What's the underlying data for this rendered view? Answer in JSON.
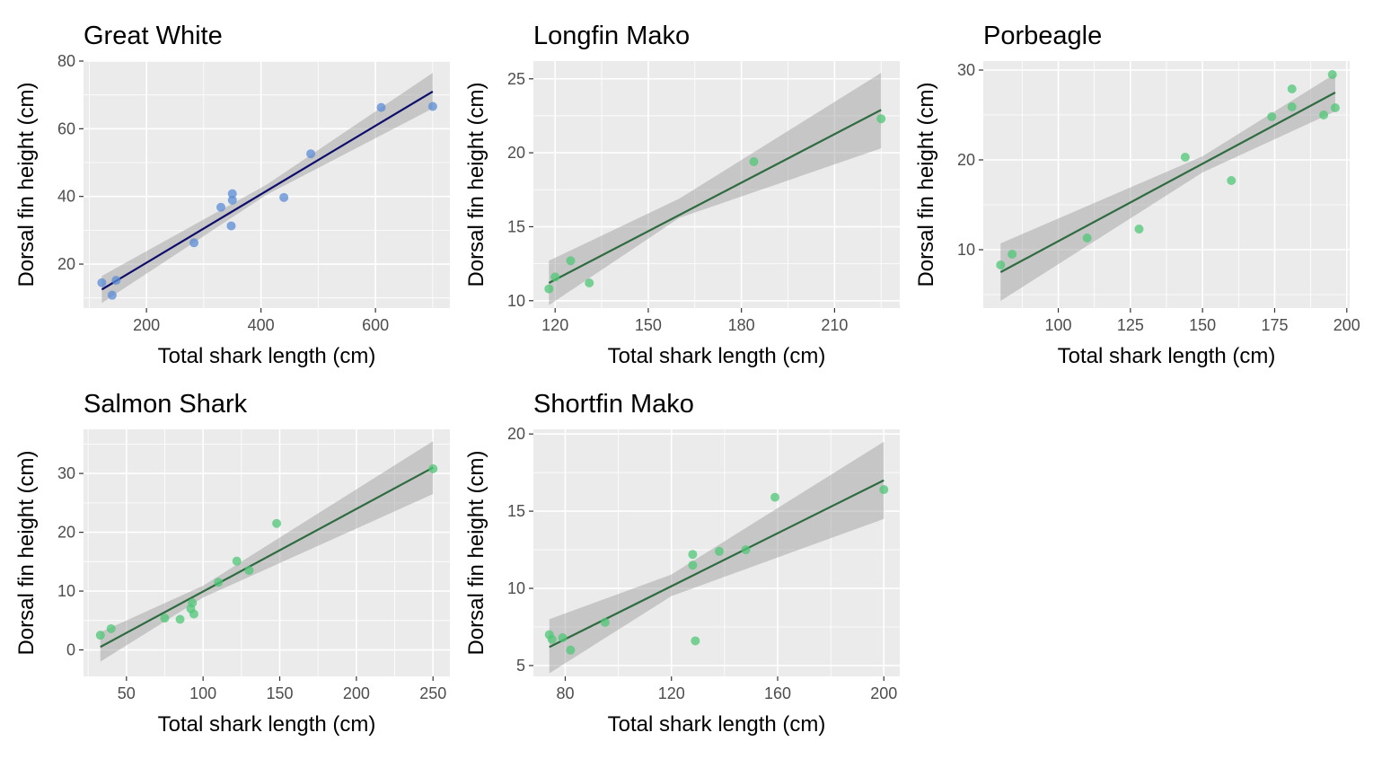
{
  "chart_data": [
    {
      "type": "scatter",
      "title": "Great White",
      "xlabel": "Total shark length (cm)",
      "ylabel": "Dorsal fin height (cm)",
      "xlim": [
        90,
        730
      ],
      "ylim": [
        7,
        80
      ],
      "xticks": [
        200,
        400,
        600
      ],
      "yticks": [
        20,
        40,
        60,
        80
      ],
      "xticklabels": [
        "200",
        "400",
        "600"
      ],
      "yticklabels": [
        "20",
        "40",
        "60",
        "80"
      ],
      "grid": true,
      "point_color": "#5b8bd6",
      "line_color": "#0d0d6b",
      "points": [
        [
          122,
          14.5
        ],
        [
          140,
          10.8
        ],
        [
          147,
          15.2
        ],
        [
          283,
          26.3
        ],
        [
          330,
          36.8
        ],
        [
          348,
          31.3
        ],
        [
          350,
          38.9
        ],
        [
          350,
          40.8
        ],
        [
          440,
          39.7
        ],
        [
          487,
          52.6
        ],
        [
          610,
          66.3
        ],
        [
          700,
          66.6
        ]
      ],
      "fit": {
        "x0": 122,
        "y0": 12.5,
        "x1": 700,
        "y1": 71.0
      },
      "ci": {
        "lower": [
          [
            122,
            8.5
          ],
          [
            410,
            40.5
          ],
          [
            700,
            66.0
          ]
        ],
        "upper": [
          [
            122,
            16.5
          ],
          [
            410,
            43.5
          ],
          [
            700,
            76.5
          ]
        ]
      }
    },
    {
      "type": "scatter",
      "title": "Longfin Mako",
      "xlabel": "Total shark length (cm)",
      "ylabel": "Dorsal fin height (cm)",
      "xlim": [
        113,
        231
      ],
      "ylim": [
        9.5,
        26.2
      ],
      "xticks": [
        120,
        150,
        180,
        210
      ],
      "yticks": [
        10,
        15,
        20,
        25
      ],
      "xticklabels": [
        "120",
        "150",
        "180",
        "210"
      ],
      "yticklabels": [
        "10",
        "15",
        "20",
        "25"
      ],
      "grid": true,
      "point_color": "#4fc776",
      "line_color": "#2f6b40",
      "points": [
        [
          118,
          10.8
        ],
        [
          120,
          11.6
        ],
        [
          125,
          12.7
        ],
        [
          131,
          11.2
        ],
        [
          184,
          19.4
        ],
        [
          225,
          22.3
        ]
      ],
      "fit": {
        "x0": 118,
        "y0": 11.2,
        "x1": 225,
        "y1": 22.9
      },
      "ci": {
        "lower": [
          [
            118,
            9.7
          ],
          [
            160,
            15.6
          ],
          [
            225,
            20.3
          ]
        ],
        "upper": [
          [
            118,
            12.7
          ],
          [
            160,
            16.9
          ],
          [
            225,
            25.4
          ]
        ]
      }
    },
    {
      "type": "scatter",
      "title": "Porbeagle",
      "xlabel": "Total shark length (cm)",
      "ylabel": "Dorsal fin height (cm)",
      "xlim": [
        74,
        201
      ],
      "ylim": [
        3.5,
        31
      ],
      "xticks": [
        100,
        125,
        150,
        175,
        200
      ],
      "yticks": [
        10,
        20,
        30
      ],
      "xticklabels": [
        "100",
        "125",
        "150",
        "175",
        "200"
      ],
      "yticklabels": [
        "10",
        "20",
        "30"
      ],
      "grid": true,
      "point_color": "#4fc776",
      "line_color": "#2f6b40",
      "points": [
        [
          80,
          8.3
        ],
        [
          84,
          9.5
        ],
        [
          110,
          11.3
        ],
        [
          128,
          12.3
        ],
        [
          144,
          20.3
        ],
        [
          160,
          17.7
        ],
        [
          174,
          24.8
        ],
        [
          181,
          27.9
        ],
        [
          181,
          25.9
        ],
        [
          192,
          25.0
        ],
        [
          195,
          29.5
        ],
        [
          196,
          25.8
        ]
      ],
      "fit": {
        "x0": 80,
        "y0": 7.5,
        "x1": 196,
        "y1": 27.5
      },
      "ci": {
        "lower": [
          [
            80,
            4.3
          ],
          [
            150,
            18.6
          ],
          [
            196,
            25.4
          ]
        ],
        "upper": [
          [
            80,
            10.7
          ],
          [
            150,
            20.4
          ],
          [
            196,
            29.6
          ]
        ]
      }
    },
    {
      "type": "scatter",
      "title": "Salmon Shark",
      "xlabel": "Total shark length (cm)",
      "ylabel": "Dorsal fin height (cm)",
      "xlim": [
        22,
        261
      ],
      "ylim": [
        -4.5,
        37.5
      ],
      "xticks": [
        50,
        100,
        150,
        200,
        250
      ],
      "yticks": [
        0,
        10,
        20,
        30
      ],
      "xticklabels": [
        "50",
        "100",
        "150",
        "200",
        "250"
      ],
      "yticklabels": [
        "0",
        "10",
        "20",
        "30"
      ],
      "grid": true,
      "point_color": "#4fc776",
      "line_color": "#2f6b40",
      "points": [
        [
          33,
          2.5
        ],
        [
          40,
          3.6
        ],
        [
          75,
          5.4
        ],
        [
          85,
          5.2
        ],
        [
          92,
          7.0
        ],
        [
          93,
          8.0
        ],
        [
          94,
          6.1
        ],
        [
          110,
          11.5
        ],
        [
          122,
          15.1
        ],
        [
          130,
          13.5
        ],
        [
          148,
          21.5
        ],
        [
          250,
          30.8
        ]
      ],
      "fit": {
        "x0": 33,
        "y0": 0.5,
        "x1": 250,
        "y1": 31.0
      },
      "ci": {
        "lower": [
          [
            33,
            -2.0
          ],
          [
            100,
            8.9
          ],
          [
            250,
            26.5
          ]
        ],
        "upper": [
          [
            33,
            3.0
          ],
          [
            100,
            10.9
          ],
          [
            250,
            35.5
          ]
        ]
      }
    },
    {
      "type": "scatter",
      "title": "Shortfin Mako",
      "xlabel": "Total shark length (cm)",
      "ylabel": "Dorsal fin height (cm)",
      "xlim": [
        68,
        206
      ],
      "ylim": [
        4.3,
        20.3
      ],
      "xticks": [
        80,
        120,
        160,
        200
      ],
      "yticks": [
        5,
        10,
        15,
        20
      ],
      "xticklabels": [
        "80",
        "120",
        "160",
        "200"
      ],
      "yticklabels": [
        "5",
        "10",
        "15",
        "20"
      ],
      "grid": true,
      "point_color": "#4fc776",
      "line_color": "#2f6b40",
      "points": [
        [
          74,
          7.0
        ],
        [
          75,
          6.7
        ],
        [
          79,
          6.8
        ],
        [
          82,
          6.0
        ],
        [
          95,
          7.8
        ],
        [
          128,
          12.2
        ],
        [
          128,
          11.5
        ],
        [
          129,
          6.6
        ],
        [
          138,
          12.4
        ],
        [
          148,
          12.5
        ],
        [
          159,
          15.9
        ],
        [
          200,
          16.4
        ]
      ],
      "fit": {
        "x0": 74,
        "y0": 6.2,
        "x1": 200,
        "y1": 17.0
      },
      "ci": {
        "lower": [
          [
            74,
            4.5
          ],
          [
            120,
            9.5
          ],
          [
            200,
            14.5
          ]
        ],
        "upper": [
          [
            74,
            8.0
          ],
          [
            120,
            10.9
          ],
          [
            200,
            19.5
          ]
        ]
      }
    }
  ]
}
